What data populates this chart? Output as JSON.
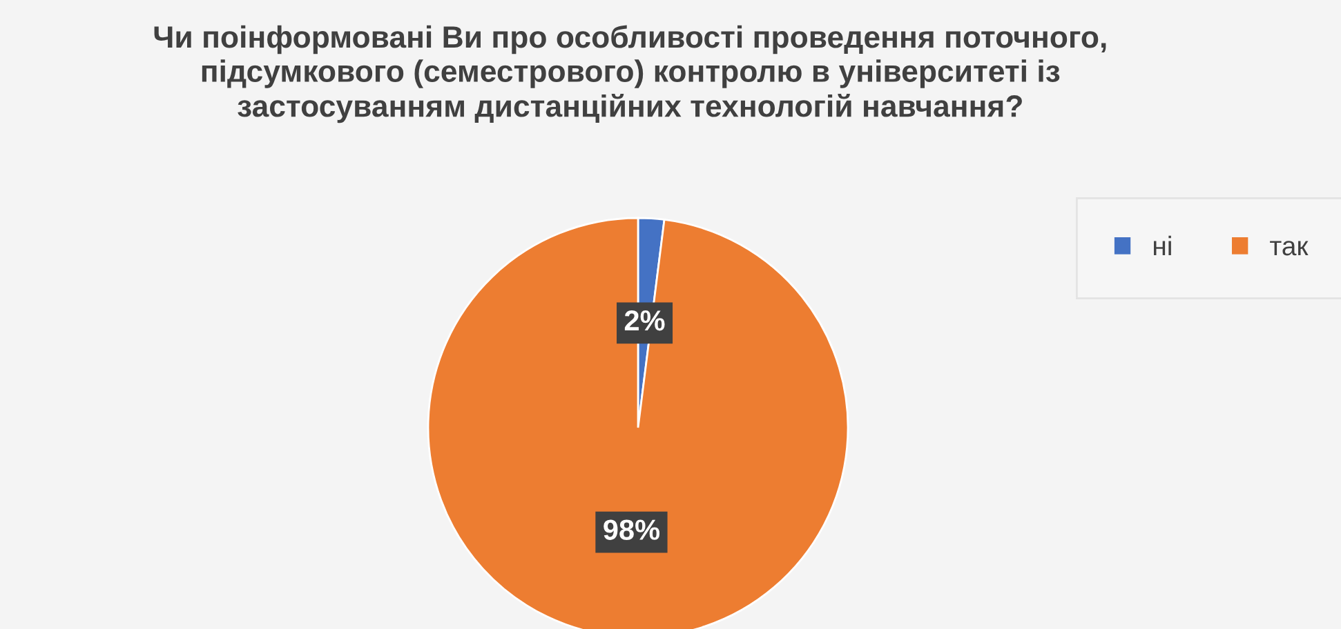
{
  "chart_data": {
    "type": "pie",
    "title": "Чи поінформовані Ви про особливості проведення поточного,\nпідсумкового (семестрового) контролю в університеті із\nзастосуванням дистанційних технологій навчання?",
    "categories": [
      "ні",
      "так"
    ],
    "values": [
      2,
      98
    ],
    "colors": [
      "#4472c4",
      "#ed7d31"
    ],
    "value_labels": [
      "2%",
      "98%"
    ],
    "legend": "right"
  }
}
